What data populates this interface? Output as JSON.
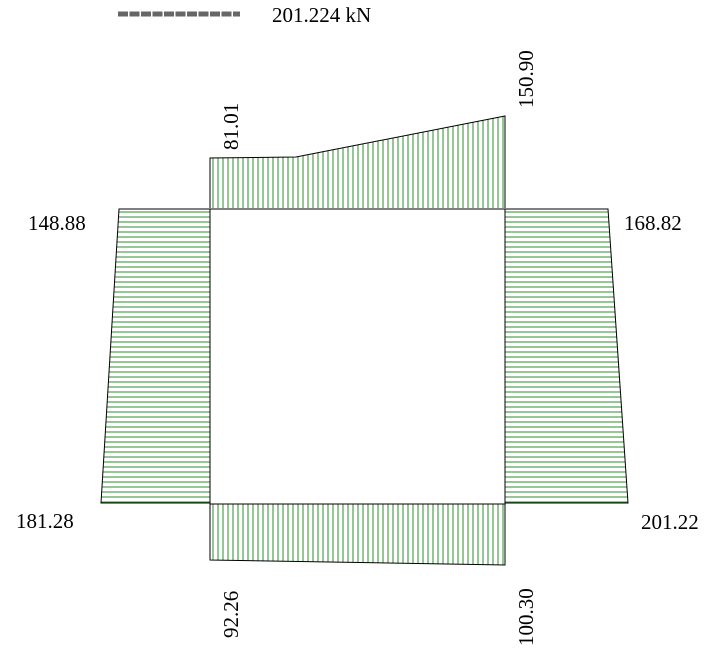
{
  "legend": {
    "scale_label": "201.224 kN",
    "line_color": "#666666"
  },
  "colors": {
    "hatch": "#2e8b2e",
    "frame": "#000000"
  },
  "members": {
    "top": {
      "start_value": "81.01",
      "end_value": "150.90",
      "start": 81.01,
      "end": 150.9
    },
    "left": {
      "top_value": "148.88",
      "bottom_value": "181.28",
      "top": 148.88,
      "bottom": 181.28
    },
    "right": {
      "top_value": "168.82",
      "bottom_value": "201.22",
      "top": 168.82,
      "bottom": 201.22
    },
    "bottom": {
      "start_value": "92.26",
      "end_value": "100.30",
      "start": 92.26,
      "end": 100.3
    }
  }
}
